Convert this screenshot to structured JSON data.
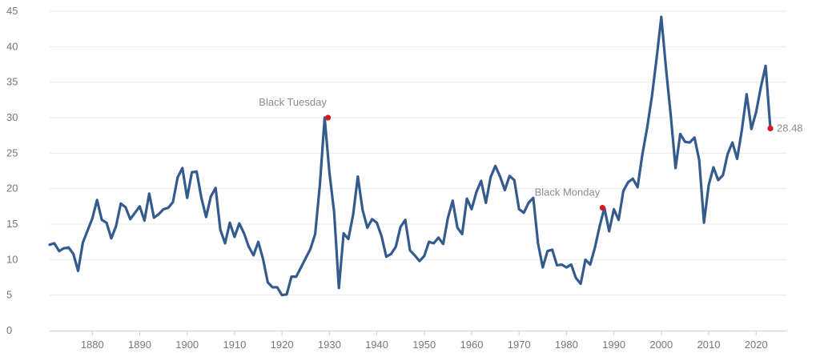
{
  "chart_data": {
    "type": "line",
    "xlim": [
      1871,
      2023
    ],
    "ylim": [
      0,
      45
    ],
    "x_ticks": [
      1880,
      1890,
      1900,
      1910,
      1920,
      1930,
      1940,
      1950,
      1960,
      1970,
      1980,
      1990,
      2000,
      2010,
      2020
    ],
    "y_ticks": [
      0,
      5,
      10,
      15,
      20,
      25,
      30,
      35,
      40,
      45
    ],
    "grid": {
      "horizontal": true,
      "vertical": false
    },
    "colors": {
      "line": "#335b8e",
      "marker": "#d6191f"
    },
    "series": [
      {
        "x": [
          1871,
          1872,
          1873,
          1874,
          1875,
          1876,
          1877,
          1878,
          1879,
          1880,
          1881,
          1882,
          1883,
          1884,
          1885,
          1886,
          1887,
          1888,
          1889,
          1890,
          1891,
          1892,
          1893,
          1894,
          1895,
          1896,
          1897,
          1898,
          1899,
          1900,
          1901,
          1902,
          1903,
          1904,
          1905,
          1906,
          1907,
          1908,
          1909,
          1910,
          1911,
          1912,
          1913,
          1914,
          1915,
          1916,
          1917,
          1918,
          1919,
          1920,
          1921,
          1922,
          1923,
          1924,
          1925,
          1926,
          1927,
          1928,
          1929,
          1930,
          1931,
          1932,
          1933,
          1934,
          1935,
          1936,
          1937,
          1938,
          1939,
          1940,
          1941,
          1942,
          1943,
          1944,
          1945,
          1946,
          1947,
          1948,
          1949,
          1950,
          1951,
          1952,
          1953,
          1954,
          1955,
          1956,
          1957,
          1958,
          1959,
          1960,
          1961,
          1962,
          1963,
          1964,
          1965,
          1966,
          1967,
          1968,
          1969,
          1970,
          1971,
          1972,
          1973,
          1974,
          1975,
          1976,
          1977,
          1978,
          1979,
          1980,
          1981,
          1982,
          1983,
          1984,
          1985,
          1986,
          1987,
          1988,
          1989,
          1990,
          1991,
          1992,
          1993,
          1994,
          1995,
          1996,
          1997,
          1998,
          1999,
          2000,
          2001,
          2002,
          2003,
          2004,
          2005,
          2006,
          2007,
          2008,
          2009,
          2010,
          2011,
          2012,
          2013,
          2014,
          2015,
          2016,
          2017,
          2018,
          2019,
          2020,
          2021,
          2022,
          2023
        ],
        "y": [
          12.1,
          12.3,
          11.2,
          11.6,
          11.7,
          10.8,
          8.4,
          12.4,
          14.1,
          15.8,
          18.4,
          15.6,
          15.2,
          13.0,
          14.7,
          17.9,
          17.4,
          15.7,
          16.6,
          17.5,
          15.5,
          19.3,
          15.9,
          16.4,
          17.1,
          17.3,
          18.1,
          21.6,
          22.9,
          18.7,
          22.3,
          22.4,
          18.7,
          16.0,
          18.9,
          20.1,
          14.2,
          12.3,
          15.2,
          13.2,
          15.1,
          13.7,
          11.8,
          10.6,
          12.5,
          10.1,
          6.8,
          6.1,
          6.1,
          5.0,
          5.1,
          7.6,
          7.6,
          8.9,
          10.2,
          11.5,
          13.6,
          20.6,
          30.0,
          22.3,
          16.7,
          6.0,
          13.7,
          12.9,
          16.3,
          21.7,
          17.0,
          14.5,
          15.7,
          15.2,
          13.3,
          10.4,
          10.8,
          11.8,
          14.6,
          15.6,
          11.3,
          10.6,
          9.8,
          10.5,
          12.5,
          12.3,
          13.1,
          12.2,
          15.9,
          18.3,
          14.5,
          13.6,
          18.6,
          17.1,
          19.5,
          21.1,
          18.0,
          21.6,
          23.2,
          21.7,
          19.8,
          21.8,
          21.2,
          17.1,
          16.6,
          18.0,
          18.7,
          12.3,
          8.9,
          11.2,
          11.4,
          9.2,
          9.3,
          8.9,
          9.3,
          7.4,
          6.6,
          10.0,
          9.3,
          11.7,
          14.7,
          17.3,
          14.0,
          17.1,
          15.6,
          19.7,
          20.9,
          21.4,
          20.2,
          24.8,
          28.5,
          32.9,
          38.3,
          44.2,
          36.9,
          30.3,
          22.9,
          27.7,
          26.6,
          26.5,
          27.2,
          24.0,
          15.2,
          20.5,
          23.0,
          21.2,
          21.9,
          24.9,
          26.5,
          24.2,
          28.3,
          33.3,
          28.4,
          30.8,
          34.3,
          37.3,
          28.48
        ]
      }
    ],
    "annotations": [
      {
        "label": "Black Tuesday",
        "x": 1929.7,
        "y": 30.0
      },
      {
        "label": "Black Monday",
        "x": 1987.6,
        "y": 17.3
      },
      {
        "label": "28.48",
        "x": 2023,
        "y": 28.48
      }
    ]
  }
}
